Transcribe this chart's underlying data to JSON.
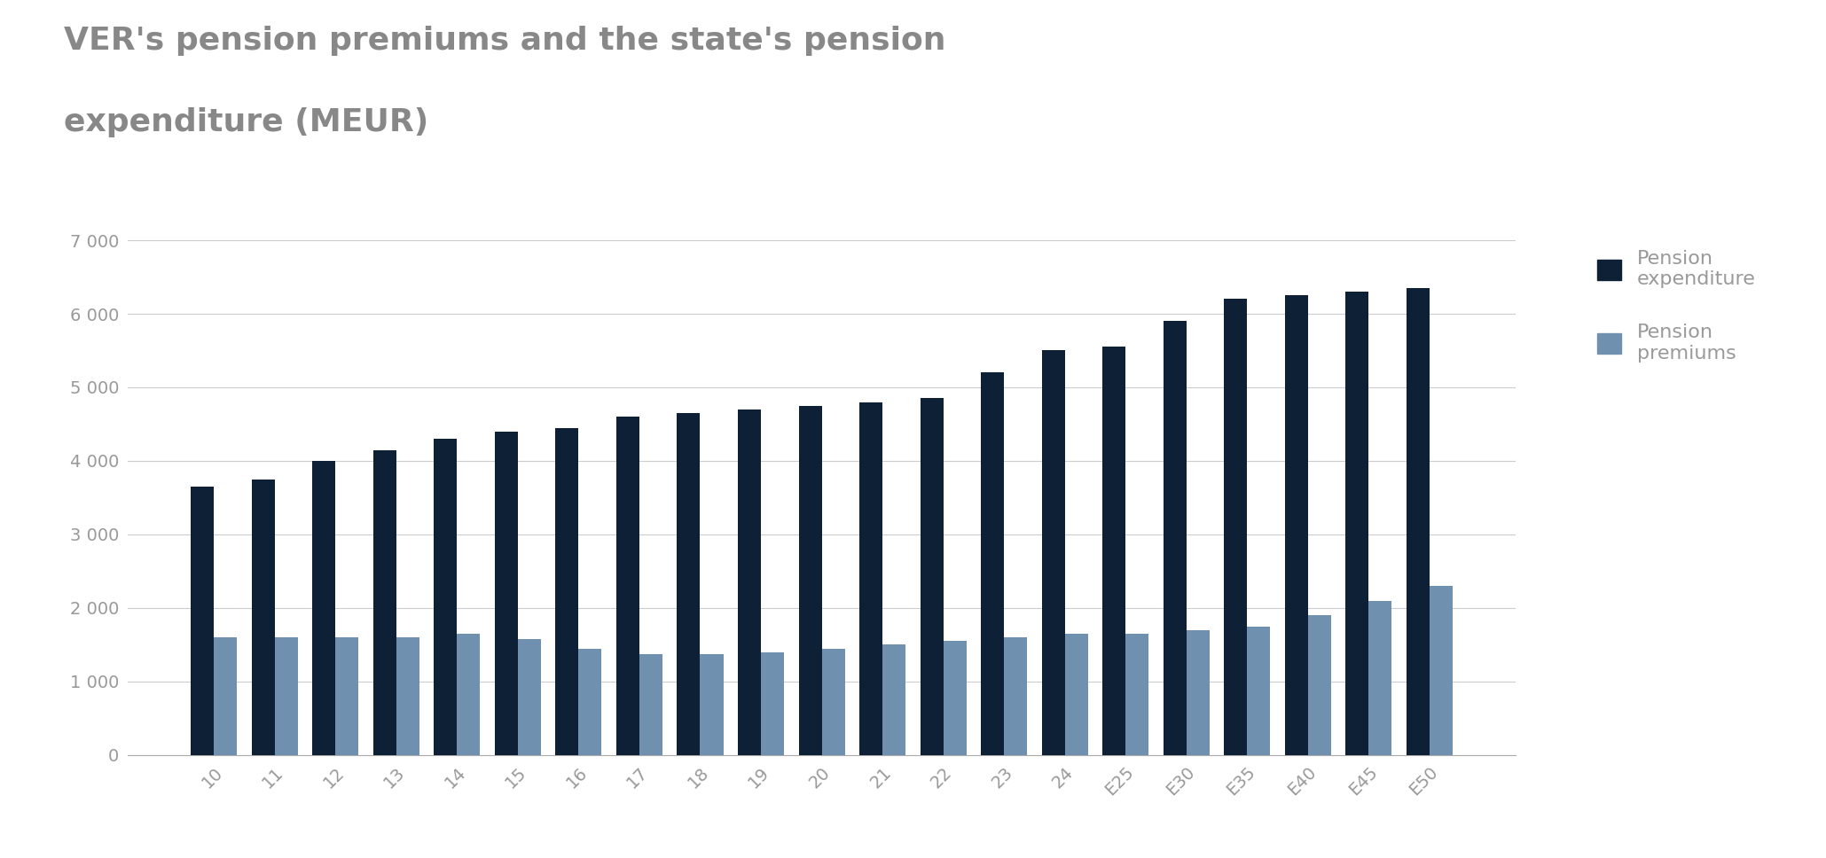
{
  "title_line1": "VER's pension premiums and the state's pension",
  "title_line2": "expenditure (MEUR)",
  "categories": [
    "10",
    "11",
    "12",
    "13",
    "14",
    "15",
    "16",
    "17",
    "18",
    "19",
    "20",
    "21",
    "22",
    "23",
    "24",
    "E25",
    "E30",
    "E35",
    "E40",
    "E45",
    "E50"
  ],
  "pension_expenditure": [
    3650,
    3750,
    4000,
    4150,
    4300,
    4400,
    4450,
    4600,
    4650,
    4700,
    4750,
    4800,
    4850,
    5200,
    5500,
    5550,
    5900,
    6200,
    6250,
    6300,
    6350
  ],
  "pension_premiums": [
    1600,
    1600,
    1600,
    1600,
    1650,
    1580,
    1450,
    1370,
    1370,
    1400,
    1450,
    1500,
    1550,
    1600,
    1650,
    1650,
    1700,
    1750,
    1900,
    2100,
    2300
  ],
  "expenditure_color": "#0d2035",
  "premiums_color": "#7090b0",
  "background_color": "#ffffff",
  "grid_color": "#cccccc",
  "ylim": [
    0,
    7000
  ],
  "yticks": [
    0,
    1000,
    2000,
    3000,
    4000,
    5000,
    6000,
    7000
  ],
  "ytick_labels": [
    "0",
    "1 000",
    "2 000",
    "3 000",
    "4 000",
    "5 000",
    "6 000",
    "7 000"
  ],
  "legend_expenditure": "Pension\nexpenditure",
  "legend_premiums": "Pension\npremiums",
  "bar_width": 0.38,
  "title_fontsize": 26,
  "tick_fontsize": 14,
  "legend_fontsize": 16
}
